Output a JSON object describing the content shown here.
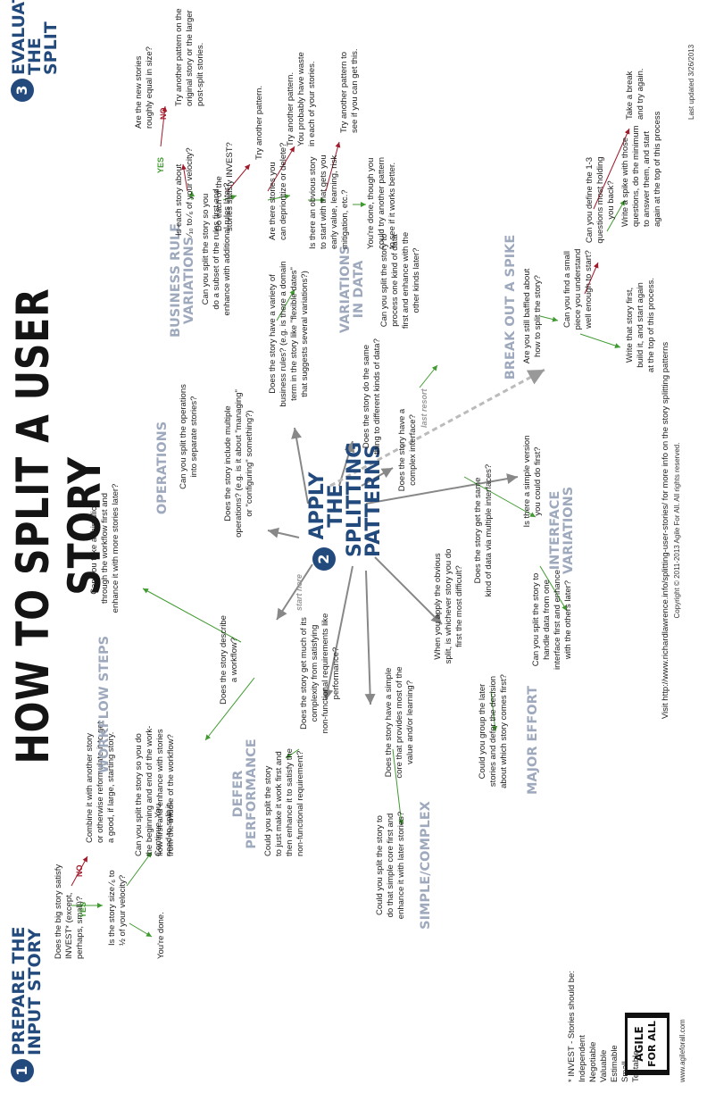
{
  "title": "HOW TO SPLIT A USER STORY",
  "section1": {
    "number": "1",
    "title_line1": "PREPARE THE",
    "title_line2": "INPUT STORY",
    "q1_line1": "Does the big story satisfy",
    "q1_line2": "INVEST* (except, perhaps, small)?",
    "no": "NO",
    "yes": "YES",
    "combine_line1": "Combine it with another story",
    "combine_line2": "or otherwise reformulate it to get",
    "combine_line3": "a good, if large, starting story.",
    "q2_line1": "Is the story size ⁄₆ to",
    "q2_line2": "½ of your velocity?",
    "continue_line1": "Continue. You",
    "continue_line2": "need to split it.",
    "done": "You're done."
  },
  "invest": {
    "heading": "* INVEST - Stories should be:",
    "items": [
      "Independent",
      "Negotiable",
      "Valuable",
      "Estimable",
      "Small",
      "Testable"
    ]
  },
  "brand": {
    "logo_line1": "AGILE",
    "logo_line2": "FOR ALL",
    "url": "www.agileforall.com"
  },
  "section2": {
    "number": "2",
    "apply_line1": "APPLY THE",
    "apply_line2": "SPLITTING",
    "apply_line3": "PATTERNS",
    "start_here": "start here",
    "last_resort": "last resort",
    "workflow": {
      "name": "WORKFLOW STEPS",
      "q_line1": "Does the story describe",
      "q_line2": "a workflow?",
      "a1_line1": "Can you split the story so you do",
      "a1_line2": "the beginning and end of the work-",
      "a1_line3": "flow first and enhance with stories",
      "a1_line4": "from the middle of the workflow?",
      "a2_line1": "Can you take a thin slice",
      "a2_line2": "through the workflow first and",
      "a2_line3": "enhance it with more stories later?"
    },
    "operations": {
      "name": "OPERATIONS",
      "q_line1": "Does the story include multiple",
      "q_line2": "operations? (e.g. is it about \"managing\"",
      "q_line3": "or \"configuring\" something?)",
      "a_line1": "Can you split the operations",
      "a_line2": "into separate stories?"
    },
    "business": {
      "name_line1": "BUSINESS RULE",
      "name_line2": "VARIATIONS",
      "q_line1": "Does the story have a variety of",
      "q_line2": "business rules? (e.g. is there a domain",
      "q_line3": "term in the story like \"flexible dates\"",
      "q_line4": "that suggests several variations?)",
      "a_line1": "Can you split the story so you",
      "a_line2": "do a subset of the rules first and",
      "a_line3": "enhance with additional rules later?"
    },
    "data": {
      "name_line1": "VARIATIONS",
      "name_line2": "IN DATA",
      "q_line1": "Does the story do the same",
      "q_line2": "thing to different kinds of data?",
      "a_line1": "Can you split the story to",
      "a_line2": "process one kind of data",
      "a_line3": "first and enhance with the",
      "a_line4": "other kinds later?"
    },
    "interface": {
      "name_line1": "INTERFACE",
      "name_line2": "VARIATIONS",
      "q1_line1": "Does the story have a",
      "q1_line2": "complex interface?",
      "a1_line1": "Is there a simple version",
      "a1_line2": "you could do first?",
      "q2_line1": "Does the story get the same",
      "q2_line2": "kind of data via multiple interfaces?",
      "a2_line1": "Can you split the story to",
      "a2_line2": "handle data from one",
      "a2_line3": "interface first and enhance",
      "a2_line4": "with the others later?"
    },
    "effort": {
      "name": "MAJOR EFFORT",
      "q_line1": "When you apply the obvious",
      "q_line2": "split, is whichever story you do",
      "q_line3": "first the most difficult?",
      "a_line1": "Could you group the later",
      "a_line2": "stories and defer the decision",
      "a_line3": "about which story comes first?"
    },
    "simple": {
      "name": "SIMPLE/COMPLEX",
      "q_line1": "Does the story have a simple",
      "q_line2": "core that provides most of the",
      "q_line3": "value and/or learning?",
      "a_line1": "Could you split the story to",
      "a_line2": "do that simple core first and",
      "a_line3": "enhance it with later stories?"
    },
    "defer": {
      "name_line1": "DEFER",
      "name_line2": "PERFORMANCE",
      "q_line1": "Does the story get much of its",
      "q_line2": "complexity from satisfying",
      "q_line3": "non-functional requirements like",
      "q_line4": "performance?",
      "a_line1": "Could you split the story",
      "a_line2": "to just make it work first and",
      "a_line3": "then enhance it to satisfy the",
      "a_line4": "non-functional requirement?"
    },
    "spike": {
      "name": "BREAK OUT A SPIKE",
      "q_line1": "Are you still baffled about",
      "q_line2": "how to split the story?",
      "q2_line1": "Can you find a small",
      "q2_line2": "piece you understand",
      "q2_line3": "well enough to start?",
      "a1_line1": "Write that story first,",
      "a1_line2": "build it, and start again",
      "a1_line3": "at the top of this process.",
      "q3_line1": "Can you define the 1-3",
      "q3_line2": "questions most holding",
      "q3_line3": "you back?",
      "a2_line1": "Write a spike with those",
      "a2_line2": "questions, do the minimum",
      "a2_line3": "to answer them, and start",
      "a2_line4": "again at the top of this process",
      "a3_line1": "Take a break",
      "a3_line2": "and try again."
    }
  },
  "section3": {
    "number": "3",
    "title_line1": "EVALUATE",
    "title_line2": "THE SPLIT",
    "q1_line1": "Are the new stories",
    "q1_line2": "roughly equal in size?",
    "no": "NO",
    "yes": "YES",
    "a1_line1": "Try another pattern on the",
    "a1_line2": "original story or the larger",
    "a1_line3": "post-split stories.",
    "q2_line1": "Is each story about",
    "q2_line2": "⁄₁₀ to ⁄₆ of your velocity?",
    "q3_line1": "Do each of the",
    "q3_line2": "stories satisfy INVEST?",
    "a3": "Try another pattern.",
    "q4_line1": "Are there stories you",
    "q4_line2": "can deprioritize or delete?",
    "a4_line1": "Try another pattern.",
    "a4_line2": "You probably have waste",
    "a4_line3": "in each of your stories.",
    "q5_line1": "Is there an obvious story",
    "q5_line2": "to start with that gets you",
    "q5_line3": "early value, learning, risk",
    "q5_line4": "mitigation, etc.?",
    "a5_line1": "Try another pattern to",
    "a5_line2": "see if you can get this.",
    "done_line1": "You're done, though you",
    "done_line2": "could try another pattern",
    "done_line3": "to see if it works better."
  },
  "footer": {
    "visit": "Visit http://www.richardlawrence.info/splitting-user-stories/ for more info on the story splitting patterns",
    "copyright": "Copyright © 2011-2013 Agile For All. All rights reserved.",
    "updated": "Last updated 3/26/2013"
  }
}
